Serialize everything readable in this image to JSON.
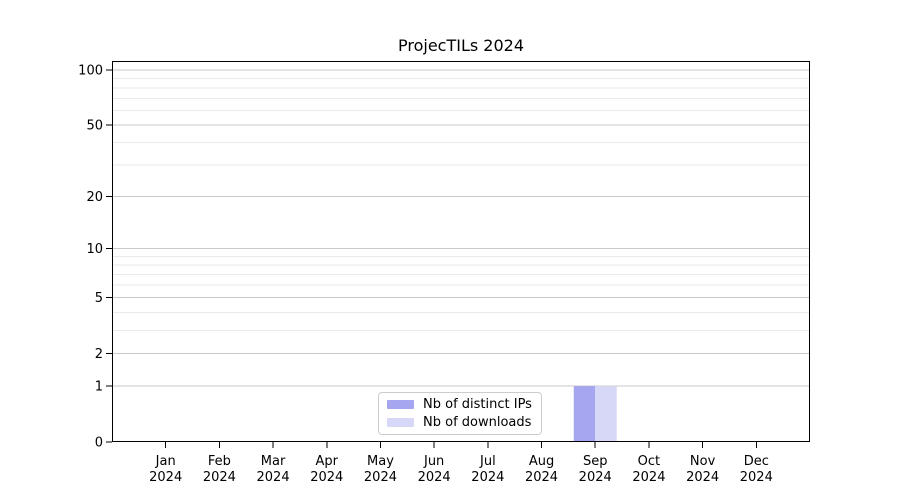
{
  "chart_data": {
    "type": "bar",
    "title": "ProjecTILs 2024",
    "x_tick_months": [
      "Jan",
      "Feb",
      "Mar",
      "Apr",
      "May",
      "Jun",
      "Jul",
      "Aug",
      "Sep",
      "Oct",
      "Nov",
      "Dec"
    ],
    "x_tick_year": "2024",
    "series": [
      {
        "name": "Nb of distinct IPs",
        "color": "#a6a6f0",
        "values": [
          0,
          0,
          0,
          0,
          0,
          0,
          0,
          0,
          1,
          0,
          0,
          0
        ]
      },
      {
        "name": "Nb of downloads",
        "color": "#d7d7f8",
        "values": [
          0,
          0,
          0,
          0,
          0,
          0,
          0,
          0,
          1,
          0,
          0,
          0
        ]
      }
    ],
    "yscale": "log1p",
    "y_major_ticks": [
      0,
      1,
      2,
      5,
      10,
      20,
      50,
      100
    ],
    "y_minor_gridlines": [
      3,
      4,
      6,
      7,
      8,
      9,
      30,
      40,
      60,
      70,
      80,
      90
    ],
    "ylim": [
      0,
      112
    ],
    "grid": "horizontal-only",
    "legend_position": "lower-center",
    "colors": {
      "axis": "#000000",
      "text": "#000000",
      "grid_major": "#c9c9c9",
      "grid_minor": "#eaeaea"
    }
  }
}
